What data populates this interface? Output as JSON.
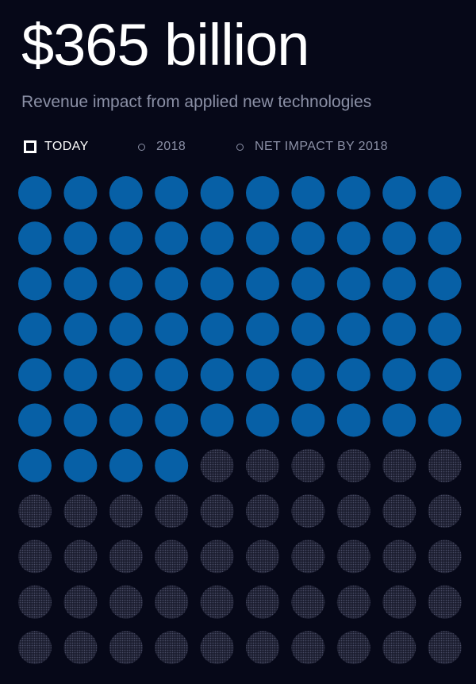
{
  "header": {
    "headline": "$365 billion",
    "subheadline": "Revenue impact from applied new technologies"
  },
  "legend": {
    "items": [
      {
        "label": "TODAY",
        "active": true
      },
      {
        "label": "2018",
        "active": false
      },
      {
        "label": "NET IMPACT BY 2018",
        "active": false
      }
    ]
  },
  "colors": {
    "background": "#060818",
    "filled": "#0760a6",
    "empty": "#34364a",
    "text_muted": "#8b90a6"
  },
  "chart_data": {
    "type": "waffle",
    "series": [
      {
        "name": "TODAY",
        "filled": 64
      }
    ],
    "total": 110,
    "rows": 11,
    "cols": 10
  }
}
